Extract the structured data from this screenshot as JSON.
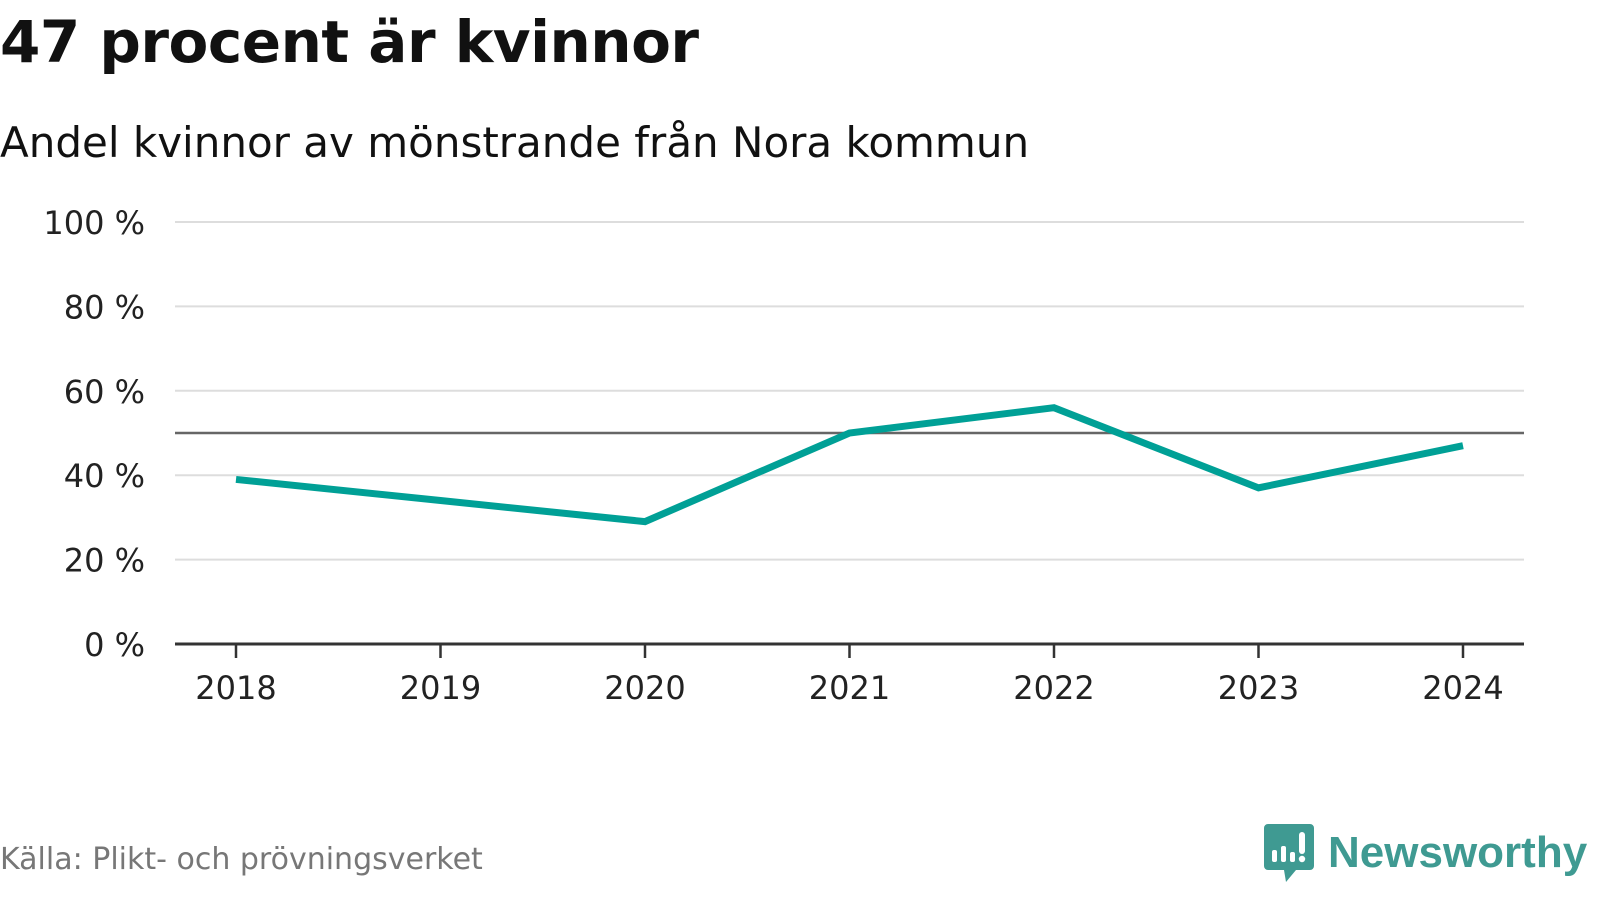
{
  "chart_data": {
    "type": "line",
    "title": "47 procent är kvinnor",
    "subtitle": "Andel kvinnor av mönstrande från Nora kommun",
    "categories": [
      "2018",
      "2019",
      "2020",
      "2021",
      "2022",
      "2023",
      "2024"
    ],
    "series": [
      {
        "name": "Andel kvinnor",
        "values": [
          39,
          34,
          29,
          50,
          56,
          37,
          47
        ],
        "color": "#00a096"
      }
    ],
    "reference_line": 50,
    "ylim": [
      0,
      100
    ],
    "yticks": [
      0,
      20,
      40,
      60,
      80,
      100
    ],
    "ytick_labels": [
      "0 %",
      "20 %",
      "40 %",
      "60 %",
      "80 %",
      "100 %"
    ],
    "xlabel": "",
    "ylabel": "",
    "grid": true,
    "legend": "none"
  },
  "footer": {
    "source": "Källa: Plikt- och prövningsverket",
    "logo": "Newsworthy"
  },
  "colors": {
    "line": "#00a096",
    "grid": "#dddddd",
    "axis": "#333333",
    "reference": "#666666",
    "brand": "#3f9a92"
  }
}
